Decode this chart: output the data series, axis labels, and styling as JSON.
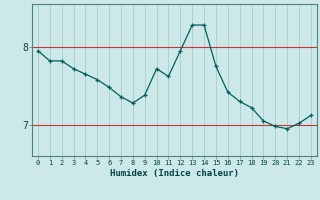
{
  "x": [
    0,
    1,
    2,
    3,
    4,
    5,
    6,
    7,
    8,
    9,
    10,
    11,
    12,
    13,
    14,
    15,
    16,
    17,
    18,
    19,
    20,
    21,
    22,
    23
  ],
  "y": [
    7.95,
    7.82,
    7.82,
    7.72,
    7.65,
    7.58,
    7.48,
    7.36,
    7.28,
    7.38,
    7.72,
    7.62,
    7.95,
    8.28,
    8.28,
    7.75,
    7.42,
    7.3,
    7.22,
    7.05,
    6.98,
    6.95,
    7.02,
    7.12
  ],
  "bg_color": "#cce8e8",
  "line_color": "#006060",
  "grid_color_v": "#a8cccc",
  "grid_color_h": "#cc3333",
  "xlabel": "Humidex (Indice chaleur)",
  "yticks": [
    7,
    8
  ],
  "ylim": [
    6.6,
    8.55
  ],
  "xlim": [
    -0.5,
    23.5
  ],
  "marker": "+",
  "tick_labels": [
    "0",
    "1",
    "2",
    "3",
    "4",
    "5",
    "6",
    "7",
    "8",
    "9",
    "10",
    "11",
    "12",
    "13",
    "14",
    "15",
    "16",
    "17",
    "18",
    "19",
    "20",
    "21",
    "22",
    "23"
  ]
}
